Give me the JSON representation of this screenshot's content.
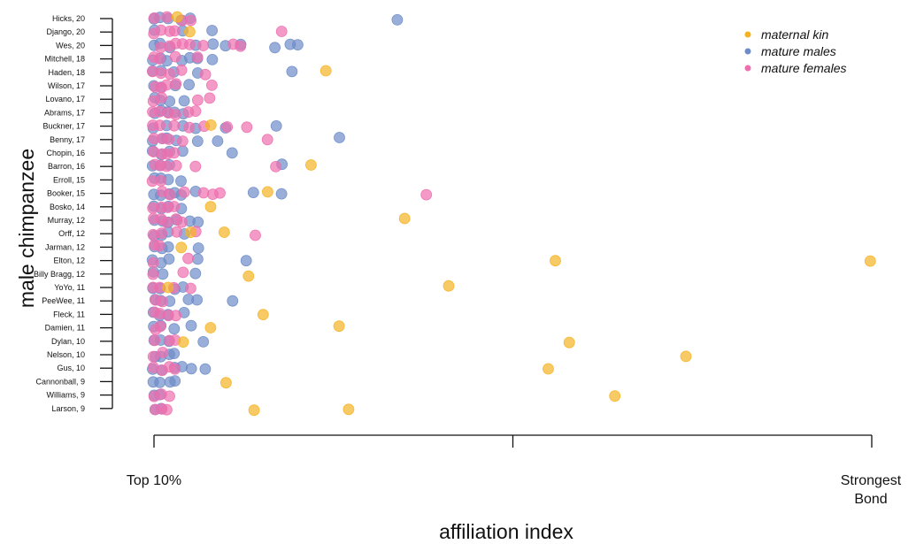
{
  "chart_data": {
    "type": "scatter",
    "ylabel": "male chimpanzee",
    "xlabel": "affiliation index",
    "x_ticks": [
      {
        "value": 0,
        "lines": [
          "Top 10%"
        ]
      },
      {
        "value": 0.5,
        "lines": []
      },
      {
        "value": 1,
        "lines": [
          "Strongest",
          "Bond"
        ]
      }
    ],
    "xlim": [
      0,
      1
    ],
    "legend_position": "top-right",
    "grid": false,
    "series_colors": {
      "maternal kin": "#f5b324",
      "mature males": "#6e8cc8",
      "mature females": "#ee6fae"
    },
    "legend": [
      {
        "label": "maternal kin",
        "color": "#f5b324"
      },
      {
        "label": "mature males",
        "color": "#6e8cc8"
      },
      {
        "label": "mature females",
        "color": "#ee6fae"
      }
    ],
    "males": [
      {
        "name": "Hicks, 20",
        "kin": [
          0.03
        ],
        "males": [
          0.0,
          0.01,
          0.02,
          0.04,
          0.05,
          0.34
        ],
        "females": [
          0.0,
          0.02,
          0.04,
          0.05
        ]
      },
      {
        "name": "Django, 20",
        "kin": [
          0.05
        ],
        "males": [
          0.0,
          0.04,
          0.08
        ],
        "females": [
          0.0,
          0.01,
          0.02,
          0.03,
          0.18
        ]
      },
      {
        "name": "Wes, 20",
        "kin": [],
        "males": [
          0.0,
          0.01,
          0.02,
          0.06,
          0.08,
          0.1,
          0.12,
          0.17,
          0.19,
          0.2
        ],
        "females": [
          0.01,
          0.02,
          0.03,
          0.04,
          0.05,
          0.07,
          0.11,
          0.12
        ]
      },
      {
        "name": "Mitchell, 18",
        "kin": [],
        "males": [
          0.0,
          0.01,
          0.02,
          0.04,
          0.05,
          0.06,
          0.08
        ],
        "females": [
          0.0,
          0.01,
          0.03,
          0.06
        ]
      },
      {
        "name": "Haden, 18",
        "kin": [
          0.24
        ],
        "males": [
          0.0,
          0.01,
          0.03,
          0.06,
          0.19
        ],
        "females": [
          0.0,
          0.01,
          0.02,
          0.04,
          0.07
        ]
      },
      {
        "name": "Wilson, 17",
        "kin": [],
        "males": [
          0.0,
          0.01,
          0.03,
          0.05
        ],
        "females": [
          0.0,
          0.01,
          0.02,
          0.03,
          0.08
        ]
      },
      {
        "name": "Lovano, 17",
        "kin": [],
        "males": [
          0.0,
          0.01,
          0.02,
          0.04
        ],
        "females": [
          0.0,
          0.01,
          0.06,
          0.08
        ]
      },
      {
        "name": "Abrams, 17",
        "kin": [],
        "males": [
          0.0,
          0.01,
          0.02,
          0.03,
          0.04
        ],
        "females": [
          0.0,
          0.01,
          0.02,
          0.03,
          0.05,
          0.06
        ]
      },
      {
        "name": "Buckner, 17",
        "kin": [
          0.08
        ],
        "males": [
          0.0,
          0.02,
          0.04,
          0.06,
          0.1,
          0.17
        ],
        "females": [
          0.0,
          0.01,
          0.03,
          0.05,
          0.07,
          0.1,
          0.13
        ]
      },
      {
        "name": "Benny, 17",
        "kin": [],
        "males": [
          0.0,
          0.01,
          0.02,
          0.03,
          0.06,
          0.09,
          0.26
        ],
        "females": [
          0.0,
          0.01,
          0.02,
          0.04,
          0.16
        ]
      },
      {
        "name": "Chopin, 16",
        "kin": [],
        "males": [
          0.0,
          0.01,
          0.02,
          0.04,
          0.11
        ],
        "females": [
          0.0,
          0.01,
          0.02,
          0.03
        ]
      },
      {
        "name": "Barron, 16",
        "kin": [
          0.22
        ],
        "males": [
          0.0,
          0.01,
          0.02,
          0.18
        ],
        "females": [
          0.0,
          0.01,
          0.02,
          0.03,
          0.06,
          0.17
        ]
      },
      {
        "name": "Erroll, 15",
        "kin": [],
        "males": [
          0.0,
          0.01,
          0.02,
          0.04
        ],
        "females": [
          0.0,
          0.01
        ]
      },
      {
        "name": "Booker, 15",
        "kin": [
          0.16
        ],
        "males": [
          0.0,
          0.01,
          0.02,
          0.03,
          0.04,
          0.06,
          0.14,
          0.18
        ],
        "females": [
          0.01,
          0.02,
          0.04,
          0.07,
          0.08,
          0.09,
          0.38
        ]
      },
      {
        "name": "Bosko, 14",
        "kin": [
          0.08
        ],
        "males": [
          0.0,
          0.01,
          0.02,
          0.04
        ],
        "females": [
          0.0,
          0.01,
          0.02,
          0.03
        ]
      },
      {
        "name": "Murray, 12",
        "kin": [
          0.35
        ],
        "males": [
          0.0,
          0.01,
          0.02,
          0.03,
          0.05,
          0.06
        ],
        "females": [
          0.0,
          0.01,
          0.02,
          0.03,
          0.04
        ]
      },
      {
        "name": "Orff, 12",
        "kin": [
          0.05,
          0.1
        ],
        "males": [
          0.0,
          0.01,
          0.02,
          0.04
        ],
        "females": [
          0.0,
          0.01,
          0.03,
          0.06,
          0.14
        ]
      },
      {
        "name": "Jarman, 12",
        "kin": [
          0.04
        ],
        "males": [
          0.0,
          0.01,
          0.02,
          0.06
        ],
        "females": [
          0.0,
          0.01
        ]
      },
      {
        "name": "Elton, 12",
        "kin": [
          0.56,
          1.0
        ],
        "males": [
          0.0,
          0.01,
          0.02,
          0.06,
          0.13
        ],
        "females": [
          0.0,
          0.05
        ]
      },
      {
        "name": "Billy Bragg, 12",
        "kin": [
          0.13
        ],
        "males": [
          0.0,
          0.01,
          0.06
        ],
        "females": [
          0.0,
          0.04
        ]
      },
      {
        "name": "YoYo, 11",
        "kin": [
          0.02,
          0.41
        ],
        "males": [
          0.0,
          0.01,
          0.03,
          0.04
        ],
        "females": [
          0.0,
          0.01,
          0.03,
          0.05
        ]
      },
      {
        "name": "PeeWee, 11",
        "kin": [],
        "males": [
          0.0,
          0.01,
          0.02,
          0.05,
          0.06,
          0.11
        ],
        "females": [
          0.0,
          0.01
        ]
      },
      {
        "name": "Fleck, 11",
        "kin": [
          0.15
        ],
        "males": [
          0.0,
          0.01,
          0.02,
          0.04
        ],
        "females": [
          0.0,
          0.01,
          0.02,
          0.03
        ]
      },
      {
        "name": "Damien, 11",
        "kin": [
          0.08,
          0.26
        ],
        "males": [
          0.0,
          0.01,
          0.03,
          0.05
        ],
        "females": [
          0.0,
          0.01
        ]
      },
      {
        "name": "Dylan, 10",
        "kin": [
          0.04,
          0.58
        ],
        "males": [
          0.0,
          0.01,
          0.02,
          0.07
        ],
        "females": [
          0.0,
          0.02,
          0.03
        ]
      },
      {
        "name": "Nelson, 10",
        "kin": [
          0.74
        ],
        "males": [
          0.0,
          0.01,
          0.02,
          0.03
        ],
        "females": [
          0.0,
          0.01
        ]
      },
      {
        "name": "Gus, 10",
        "kin": [
          0.55
        ],
        "males": [
          0.0,
          0.01,
          0.03,
          0.04,
          0.05,
          0.07
        ],
        "females": [
          0.0,
          0.01,
          0.02,
          0.03
        ]
      },
      {
        "name": "Cannonball, 9",
        "kin": [
          0.1
        ],
        "males": [
          0.0,
          0.01,
          0.02,
          0.03
        ],
        "females": []
      },
      {
        "name": "Williams, 9",
        "kin": [
          0.64
        ],
        "males": [
          0.0,
          0.01
        ],
        "females": [
          0.0,
          0.01,
          0.02
        ]
      },
      {
        "name": "Larson, 9",
        "kin": [
          0.14,
          0.27
        ],
        "males": [
          0.0,
          0.01
        ],
        "females": [
          0.0,
          0.01,
          0.02
        ]
      }
    ]
  }
}
